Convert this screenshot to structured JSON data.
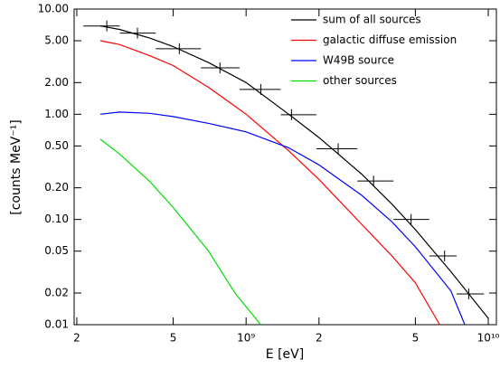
{
  "chart_data": {
    "type": "line",
    "xlabel": "E [eV]",
    "ylabel": "[counts MeV⁻¹]",
    "xscale": "log",
    "yscale": "log",
    "legend": "upper right",
    "xlim": [
      195000000,
      10800000000
    ],
    "ylim": [
      0.01,
      10
    ],
    "xticks": [
      {
        "value": 200000000,
        "label": "2"
      },
      {
        "value": 500000000,
        "label": "5"
      },
      {
        "value": 1000000000,
        "label": "10⁹"
      },
      {
        "value": 2000000000,
        "label": "2"
      },
      {
        "value": 5000000000,
        "label": "5"
      },
      {
        "value": 10000000000,
        "label": "10¹⁰"
      }
    ],
    "yticks": [
      {
        "value": 10,
        "label": "10.00"
      },
      {
        "value": 5,
        "label": "5.00"
      },
      {
        "value": 2,
        "label": "2.00"
      },
      {
        "value": 1,
        "label": "1.00"
      },
      {
        "value": 0.5,
        "label": "0.50"
      },
      {
        "value": 0.2,
        "label": "0.20"
      },
      {
        "value": 0.1,
        "label": "0.10"
      },
      {
        "value": 0.05,
        "label": "0.05"
      },
      {
        "value": 0.02,
        "label": "0.02"
      },
      {
        "value": 0.01,
        "label": "0.01"
      }
    ],
    "series": [
      {
        "name": "sum of all sources",
        "color": "#000000",
        "x": [
          250000000,
          300000000,
          400000000,
          500000000,
          700000000,
          1000000000,
          1500000000,
          2000000000,
          3000000000,
          4000000000,
          5000000000,
          7000000000,
          10000000000
        ],
        "values": [
          6.9,
          6.4,
          5.3,
          4.4,
          3.1,
          2.0,
          1.0,
          0.6,
          0.27,
          0.14,
          0.08,
          0.032,
          0.0115
        ]
      },
      {
        "name": "galactic diffuse emission",
        "color": "#ff0000",
        "x": [
          250000000,
          300000000,
          400000000,
          500000000,
          700000000,
          1000000000,
          1500000000,
          2000000000,
          3000000000,
          4000000000,
          5000000000,
          6300000000
        ],
        "values": [
          5.0,
          4.6,
          3.6,
          2.9,
          1.8,
          1.0,
          0.45,
          0.24,
          0.09,
          0.045,
          0.025,
          0.01
        ]
      },
      {
        "name": "W49B source",
        "color": "#0000ff",
        "x": [
          250000000,
          300000000,
          400000000,
          500000000,
          700000000,
          1000000000,
          1500000000,
          2000000000,
          3000000000,
          4000000000,
          5000000000,
          7000000000,
          8000000000
        ],
        "values": [
          1.0,
          1.05,
          1.02,
          0.95,
          0.82,
          0.68,
          0.48,
          0.33,
          0.17,
          0.095,
          0.055,
          0.021,
          0.01
        ]
      },
      {
        "name": "other sources",
        "color": "#00dd00",
        "x": [
          250000000,
          300000000,
          400000000,
          500000000,
          700000000,
          900000000,
          1150000000
        ],
        "values": [
          0.58,
          0.42,
          0.23,
          0.13,
          0.05,
          0.02,
          0.01
        ]
      }
    ],
    "points": {
      "color": "#000000",
      "bins": [
        213000000,
        301000000,
        424000000,
        651000000,
        940000000,
        1390000000,
        1950000000,
        2880000000,
        4060000000,
        5710000000,
        7400000000,
        9600000000
      ],
      "x": [
        266000000,
        356000000,
        530000000,
        780000000,
        1150000000,
        1540000000,
        2400000000,
        3360000000,
        4800000000,
        6600000000,
        8300000000
      ],
      "values": [
        6.9,
        5.9,
        4.2,
        2.76,
        1.72,
        0.99,
        0.47,
        0.232,
        0.1,
        0.045,
        0.0196
      ]
    }
  }
}
